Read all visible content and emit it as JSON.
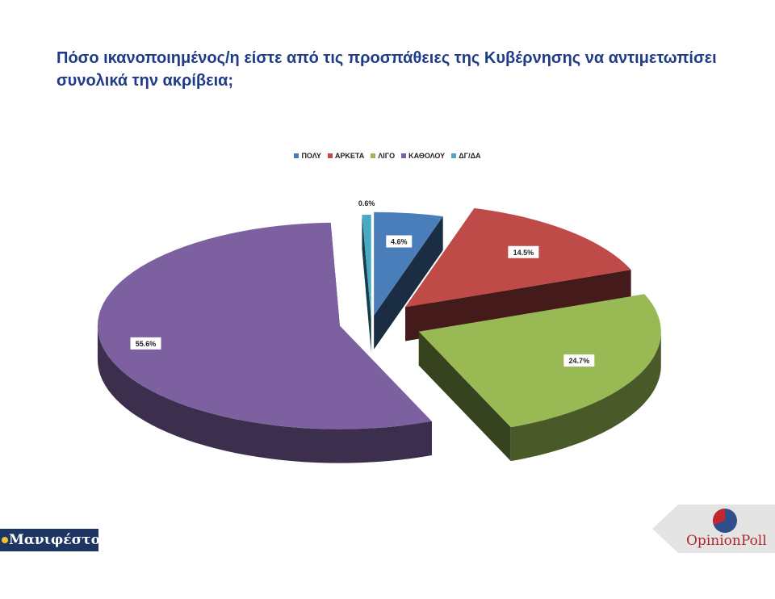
{
  "title": "Πόσο ικανοποιημένος/η είστε από τις προσπάθειες της Κυβέρνησης να αντιμετωπίσει συνολικά την ακρίβεια;",
  "chart_data": {
    "type": "pie",
    "title": "Πόσο ικανοποιημένος/η είστε από τις προσπάθειες της Κυβέρνησης να αντιμετωπίσει συνολικά την ακρίβεια;",
    "legend_position": "top",
    "exploded": true,
    "style": "3d",
    "slices": [
      {
        "label": "ΠΟΛΥ",
        "value": 4.6,
        "value_label": "4.6%",
        "color": "#4a7ebb"
      },
      {
        "label": "ΑΡΚΕΤΑ",
        "value": 14.5,
        "value_label": "14.5%",
        "color": "#be4b48"
      },
      {
        "label": "ΛΙΓΟ",
        "value": 24.7,
        "value_label": "24.7%",
        "color": "#98b954"
      },
      {
        "label": "ΚΑΘΟΛΟΥ",
        "value": 55.6,
        "value_label": "55.6%",
        "color": "#7d60a0"
      },
      {
        "label": "ΔΓ/ΔΑ",
        "value": 0.6,
        "value_label": "0.6%",
        "color": "#46aac5"
      }
    ]
  },
  "logos": {
    "left": "Μανιφέστο",
    "right": "OpinionPoll"
  }
}
